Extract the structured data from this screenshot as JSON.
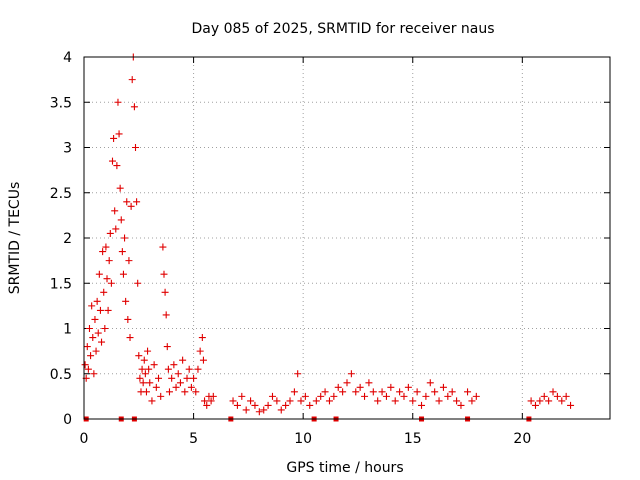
{
  "chart_data": {
    "type": "scatter",
    "title": "Day 085 of 2025, SRMTID for receiver naus",
    "xlabel": "GPS time / hours",
    "ylabel": "SRMTID / TECUs",
    "xlim": [
      0,
      24
    ],
    "ylim": [
      0,
      4
    ],
    "xticks": [
      0,
      5,
      10,
      15,
      20
    ],
    "yticks": [
      0,
      0.5,
      1,
      1.5,
      2,
      2.5,
      3,
      3.5,
      4
    ],
    "xtick_labels": [
      "0",
      "5",
      "10",
      "15",
      "20"
    ],
    "ytick_labels": [
      "0",
      "0.5",
      "1",
      "1.5",
      "2",
      "2.5",
      "3",
      "3.5",
      "4"
    ],
    "grid": true,
    "marker": "+",
    "color": "#e00000",
    "series": [
      {
        "name": "SRMTID",
        "points": [
          [
            0.05,
            0.6
          ],
          [
            0.1,
            0.45
          ],
          [
            0.15,
            0.8
          ],
          [
            0.2,
            0.55
          ],
          [
            0.25,
            1.0
          ],
          [
            0.3,
            0.7
          ],
          [
            0.35,
            1.25
          ],
          [
            0.4,
            0.9
          ],
          [
            0.45,
            0.5
          ],
          [
            0.5,
            1.1
          ],
          [
            0.55,
            0.75
          ],
          [
            0.6,
            1.3
          ],
          [
            0.65,
            0.95
          ],
          [
            0.7,
            1.6
          ],
          [
            0.75,
            1.2
          ],
          [
            0.8,
            0.85
          ],
          [
            0.85,
            1.85
          ],
          [
            0.9,
            1.4
          ],
          [
            0.95,
            1.0
          ],
          [
            1.0,
            1.9
          ],
          [
            1.05,
            1.55
          ],
          [
            1.1,
            1.2
          ],
          [
            1.15,
            1.75
          ],
          [
            1.2,
            2.05
          ],
          [
            1.25,
            1.5
          ],
          [
            1.3,
            2.85
          ],
          [
            1.35,
            3.1
          ],
          [
            1.4,
            2.3
          ],
          [
            1.45,
            2.1
          ],
          [
            1.5,
            2.8
          ],
          [
            1.55,
            3.5
          ],
          [
            1.6,
            3.15
          ],
          [
            1.65,
            2.55
          ],
          [
            1.7,
            2.2
          ],
          [
            1.75,
            1.85
          ],
          [
            1.8,
            1.6
          ],
          [
            1.85,
            2.0
          ],
          [
            1.9,
            1.3
          ],
          [
            1.95,
            2.4
          ],
          [
            2.0,
            1.1
          ],
          [
            2.05,
            1.75
          ],
          [
            2.1,
            0.9
          ],
          [
            2.15,
            2.35
          ],
          [
            2.2,
            3.75
          ],
          [
            2.25,
            4.0
          ],
          [
            2.3,
            3.45
          ],
          [
            2.35,
            3.0
          ],
          [
            2.4,
            2.4
          ],
          [
            2.45,
            1.5
          ],
          [
            2.5,
            0.7
          ],
          [
            2.55,
            0.45
          ],
          [
            2.6,
            0.3
          ],
          [
            2.65,
            0.55
          ],
          [
            2.7,
            0.4
          ],
          [
            2.75,
            0.65
          ],
          [
            2.8,
            0.5
          ],
          [
            2.85,
            0.3
          ],
          [
            2.9,
            0.75
          ],
          [
            2.95,
            0.55
          ],
          [
            3.0,
            0.4
          ],
          [
            3.1,
            0.2
          ],
          [
            3.2,
            0.6
          ],
          [
            3.3,
            0.35
          ],
          [
            3.4,
            0.45
          ],
          [
            3.5,
            0.25
          ],
          [
            3.6,
            1.9
          ],
          [
            3.65,
            1.6
          ],
          [
            3.7,
            1.4
          ],
          [
            3.75,
            1.15
          ],
          [
            3.8,
            0.8
          ],
          [
            3.85,
            0.55
          ],
          [
            3.9,
            0.3
          ],
          [
            4.0,
            0.45
          ],
          [
            4.1,
            0.6
          ],
          [
            4.2,
            0.35
          ],
          [
            4.3,
            0.5
          ],
          [
            4.4,
            0.4
          ],
          [
            4.5,
            0.65
          ],
          [
            4.6,
            0.3
          ],
          [
            4.7,
            0.45
          ],
          [
            4.8,
            0.55
          ],
          [
            4.9,
            0.35
          ],
          [
            5.0,
            0.45
          ],
          [
            5.1,
            0.3
          ],
          [
            5.2,
            0.55
          ],
          [
            5.3,
            0.75
          ],
          [
            5.4,
            0.9
          ],
          [
            5.45,
            0.65
          ],
          [
            5.5,
            0.2
          ],
          [
            5.6,
            0.15
          ],
          [
            5.7,
            0.25
          ],
          [
            5.8,
            0.2
          ],
          [
            5.9,
            0.25
          ],
          [
            6.8,
            0.2
          ],
          [
            7.0,
            0.15
          ],
          [
            7.2,
            0.25
          ],
          [
            7.4,
            0.1
          ],
          [
            7.6,
            0.2
          ],
          [
            7.8,
            0.15
          ],
          [
            8.0,
            0.08
          ],
          [
            8.2,
            0.1
          ],
          [
            8.4,
            0.15
          ],
          [
            8.6,
            0.25
          ],
          [
            8.8,
            0.2
          ],
          [
            9.0,
            0.1
          ],
          [
            9.2,
            0.15
          ],
          [
            9.4,
            0.2
          ],
          [
            9.6,
            0.3
          ],
          [
            9.75,
            0.5
          ],
          [
            9.9,
            0.2
          ],
          [
            10.1,
            0.25
          ],
          [
            10.3,
            0.15
          ],
          [
            10.6,
            0.2
          ],
          [
            10.8,
            0.25
          ],
          [
            11.0,
            0.3
          ],
          [
            11.2,
            0.2
          ],
          [
            11.4,
            0.25
          ],
          [
            11.6,
            0.35
          ],
          [
            11.8,
            0.3
          ],
          [
            12.0,
            0.4
          ],
          [
            12.2,
            0.5
          ],
          [
            12.4,
            0.3
          ],
          [
            12.6,
            0.35
          ],
          [
            12.8,
            0.25
          ],
          [
            13.0,
            0.4
          ],
          [
            13.2,
            0.3
          ],
          [
            13.4,
            0.2
          ],
          [
            13.6,
            0.3
          ],
          [
            13.8,
            0.25
          ],
          [
            14.0,
            0.35
          ],
          [
            14.2,
            0.2
          ],
          [
            14.4,
            0.3
          ],
          [
            14.6,
            0.25
          ],
          [
            14.8,
            0.35
          ],
          [
            15.0,
            0.2
          ],
          [
            15.2,
            0.3
          ],
          [
            15.4,
            0.15
          ],
          [
            15.6,
            0.25
          ],
          [
            15.8,
            0.4
          ],
          [
            16.0,
            0.3
          ],
          [
            16.2,
            0.2
          ],
          [
            16.4,
            0.35
          ],
          [
            16.6,
            0.25
          ],
          [
            16.8,
            0.3
          ],
          [
            17.0,
            0.2
          ],
          [
            17.2,
            0.15
          ],
          [
            17.5,
            0.3
          ],
          [
            17.7,
            0.2
          ],
          [
            17.9,
            0.25
          ],
          [
            20.4,
            0.2
          ],
          [
            20.6,
            0.15
          ],
          [
            20.8,
            0.2
          ],
          [
            21.0,
            0.25
          ],
          [
            21.2,
            0.2
          ],
          [
            21.4,
            0.3
          ],
          [
            21.6,
            0.25
          ],
          [
            21.8,
            0.2
          ],
          [
            22.0,
            0.25
          ],
          [
            22.2,
            0.15
          ]
        ]
      }
    ],
    "baseline_markers_x": [
      0.1,
      1.7,
      2.3,
      6.7,
      10.5,
      11.5,
      15.4,
      17.5,
      20.3
    ]
  }
}
